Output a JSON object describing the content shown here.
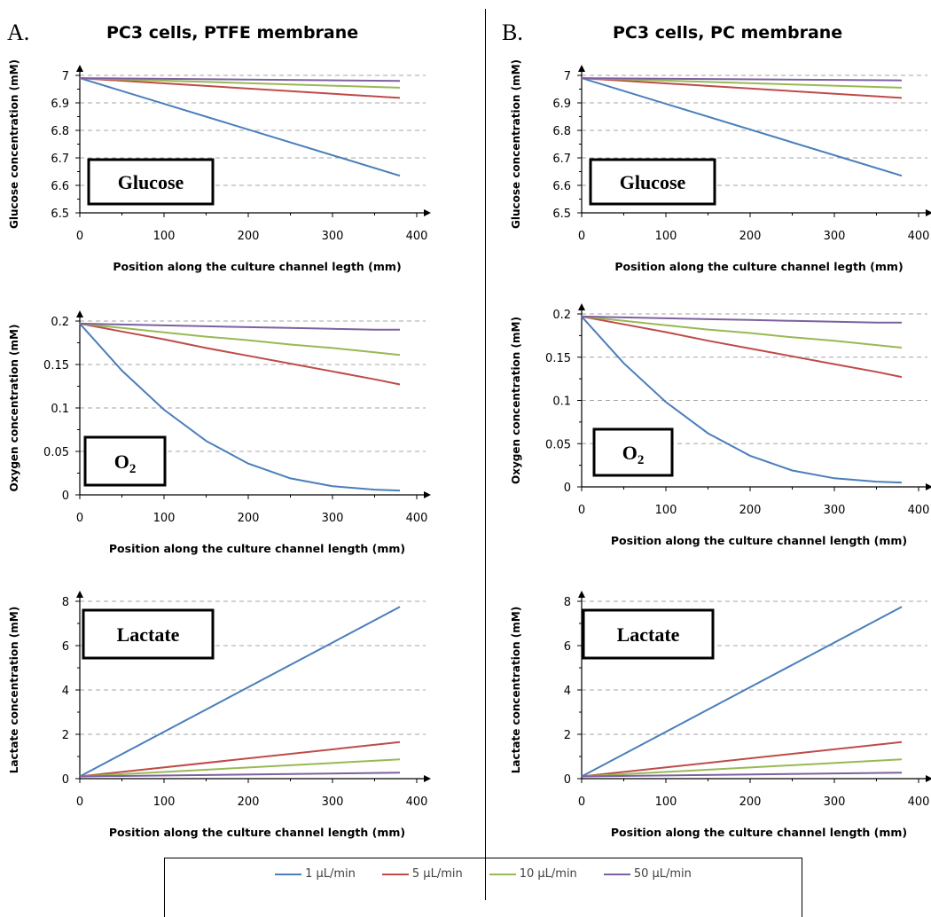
{
  "panels": [
    {
      "letter": "A.",
      "title": "PC3 cells, PTFE membrane"
    },
    {
      "letter": "B.",
      "title": "PC3 cells, PC membrane"
    }
  ],
  "legend": [
    {
      "label": "1 μL/min",
      "color": "#4a7ebb"
    },
    {
      "label": "5 μL/min",
      "color": "#be4b48"
    },
    {
      "label": "10 μL/min",
      "color": "#98b954"
    },
    {
      "label": "50 μL/min",
      "color": "#7d60a0"
    }
  ],
  "chart_data": [
    {
      "panel": "A.",
      "type": "line",
      "xlabel": "Position along the culture channel legth (mm)",
      "ylabel": "Glucose concentration (mM)",
      "box_label": "Glucose",
      "xlim": [
        0,
        400
      ],
      "xticks": [
        0,
        100,
        200,
        300,
        400
      ],
      "ylim": [
        6.5,
        7
      ],
      "yticks": [
        "6.5",
        "6.6",
        "6.7",
        "6.8",
        "6.9",
        "7"
      ],
      "grid": true,
      "x": [
        0,
        380
      ],
      "series": [
        {
          "name": "1 μL/min",
          "values": [
            6.99,
            6.635
          ]
        },
        {
          "name": "5 μL/min",
          "values": [
            6.99,
            6.918
          ]
        },
        {
          "name": "10 μL/min",
          "values": [
            6.99,
            6.955
          ]
        },
        {
          "name": "50 μL/min",
          "values": [
            6.99,
            6.98
          ]
        }
      ]
    },
    {
      "panel": "B.",
      "type": "line",
      "xlabel": "Position along the culture channel legth (mm)",
      "ylabel": "Glucose concentration (mM)",
      "box_label": "Glucose",
      "xlim": [
        0,
        400
      ],
      "xticks": [
        0,
        100,
        200,
        300,
        400
      ],
      "ylim": [
        6.5,
        7
      ],
      "yticks": [
        "6.5",
        "6.6",
        "6.7",
        "6.8",
        "6.9",
        "7"
      ],
      "grid": true,
      "x": [
        0,
        380
      ],
      "series": [
        {
          "name": "1 μL/min",
          "values": [
            6.99,
            6.635
          ]
        },
        {
          "name": "5 μL/min",
          "values": [
            6.99,
            6.918
          ]
        },
        {
          "name": "10 μL/min",
          "values": [
            6.99,
            6.955
          ]
        },
        {
          "name": "50 μL/min",
          "values": [
            6.99,
            6.982
          ]
        }
      ]
    },
    {
      "panel": "A.",
      "type": "line",
      "xlabel": "Position along the culture channel length (mm)",
      "ylabel": "Oxygen concentration (mM)",
      "box_label": "O2",
      "xlim": [
        0,
        400
      ],
      "xticks": [
        0,
        100,
        200,
        300,
        400
      ],
      "ylim": [
        0,
        0.2
      ],
      "yticks": [
        "0",
        "0.05",
        "0.1",
        "0.15",
        "0.2"
      ],
      "grid": true,
      "x": [
        0,
        50,
        100,
        150,
        200,
        250,
        300,
        350,
        380
      ],
      "series": [
        {
          "name": "1 μL/min",
          "values": [
            0.197,
            0.143,
            0.098,
            0.062,
            0.036,
            0.019,
            0.01,
            0.006,
            0.005
          ]
        },
        {
          "name": "5 μL/min",
          "values": [
            0.197,
            0.188,
            0.179,
            0.169,
            0.16,
            0.151,
            0.142,
            0.133,
            0.127
          ]
        },
        {
          "name": "10 μL/min",
          "values": [
            0.197,
            0.192,
            0.187,
            0.182,
            0.178,
            0.173,
            0.169,
            0.164,
            0.161
          ]
        },
        {
          "name": "50 μL/min",
          "values": [
            0.197,
            0.196,
            0.195,
            0.194,
            0.193,
            0.192,
            0.191,
            0.19,
            0.19
          ]
        }
      ]
    },
    {
      "panel": "B.",
      "type": "line",
      "xlabel": "Position along the culture channel length (mm)",
      "ylabel": "Oxygen concentration (mM)",
      "box_label": "O2",
      "xlim": [
        0,
        400
      ],
      "xticks": [
        0,
        100,
        200,
        300,
        400
      ],
      "ylim": [
        0,
        0.2
      ],
      "yticks": [
        "0",
        "0.05",
        "0.1",
        "0.15",
        "0.2"
      ],
      "grid": true,
      "x": [
        0,
        50,
        100,
        150,
        200,
        250,
        300,
        350,
        380
      ],
      "series": [
        {
          "name": "1 μL/min",
          "values": [
            0.197,
            0.143,
            0.098,
            0.062,
            0.036,
            0.019,
            0.01,
            0.006,
            0.005
          ]
        },
        {
          "name": "5 μL/min",
          "values": [
            0.197,
            0.188,
            0.179,
            0.169,
            0.16,
            0.151,
            0.142,
            0.133,
            0.127
          ]
        },
        {
          "name": "10 μL/min",
          "values": [
            0.197,
            0.192,
            0.187,
            0.182,
            0.178,
            0.173,
            0.169,
            0.164,
            0.161
          ]
        },
        {
          "name": "50 μL/min",
          "values": [
            0.197,
            0.196,
            0.195,
            0.194,
            0.193,
            0.192,
            0.191,
            0.19,
            0.19
          ]
        }
      ]
    },
    {
      "panel": "A.",
      "type": "line",
      "xlabel": "Position along the culture channel length (mm)",
      "ylabel": "Lactate concentration (mM)",
      "box_label": "Lactate",
      "xlim": [
        0,
        400
      ],
      "xticks": [
        0,
        100,
        200,
        300,
        400
      ],
      "ylim": [
        0,
        8
      ],
      "yticks": [
        "0",
        "2",
        "4",
        "6",
        "8"
      ],
      "grid": true,
      "x": [
        0,
        380
      ],
      "series": [
        {
          "name": "1 μL/min",
          "values": [
            0.1,
            7.75
          ]
        },
        {
          "name": "5 μL/min",
          "values": [
            0.1,
            1.65
          ]
        },
        {
          "name": "10 μL/min",
          "values": [
            0.1,
            0.87
          ]
        },
        {
          "name": "50 μL/min",
          "values": [
            0.1,
            0.27
          ]
        }
      ]
    },
    {
      "panel": "B.",
      "type": "line",
      "xlabel": "Position along the culture channel length (mm)",
      "ylabel": "Lactate concentration (mM)",
      "box_label": "Lactate",
      "xlim": [
        0,
        400
      ],
      "xticks": [
        0,
        100,
        200,
        300,
        400
      ],
      "ylim": [
        0,
        8
      ],
      "yticks": [
        "0",
        "2",
        "4",
        "6",
        "8"
      ],
      "grid": true,
      "x": [
        0,
        380
      ],
      "series": [
        {
          "name": "1 μL/min",
          "values": [
            0.1,
            7.75
          ]
        },
        {
          "name": "5 μL/min",
          "values": [
            0.1,
            1.65
          ]
        },
        {
          "name": "10 μL/min",
          "values": [
            0.1,
            0.87
          ]
        },
        {
          "name": "50 μL/min",
          "values": [
            0.1,
            0.27
          ]
        }
      ]
    }
  ]
}
